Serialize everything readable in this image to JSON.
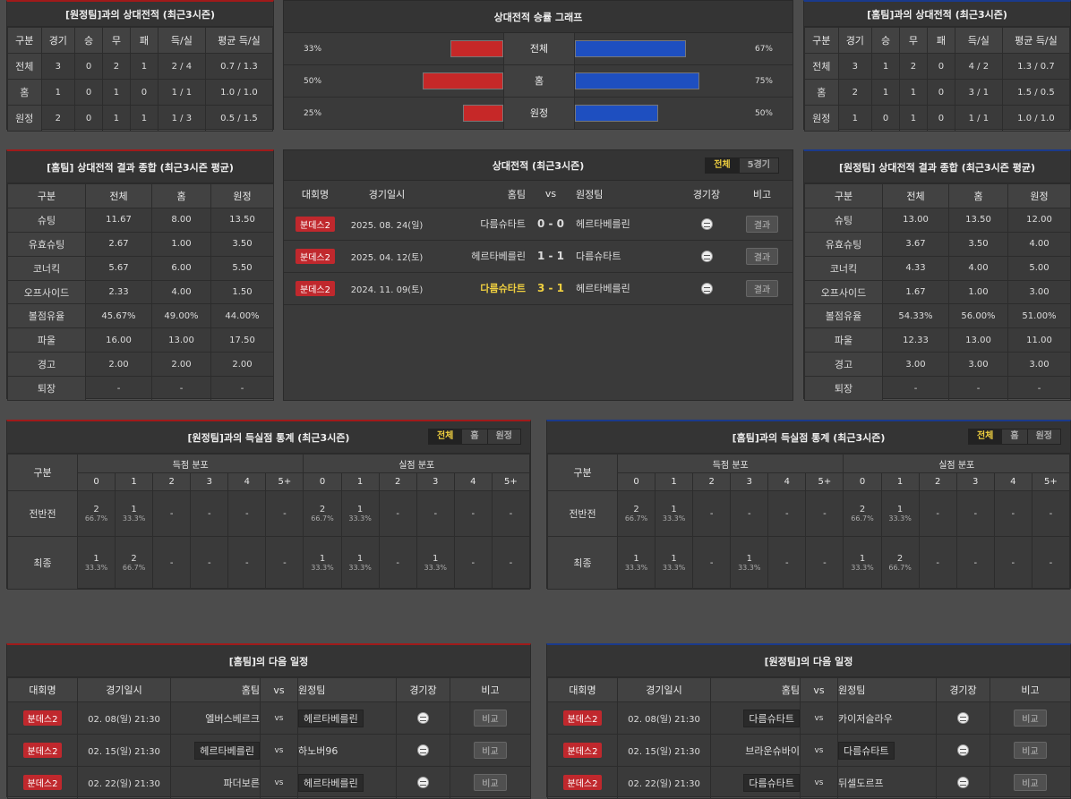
{
  "h2h_away": {
    "title": "[원정팀]과의 상대전적 (최근3시즌)",
    "headers": [
      "구분",
      "경기",
      "승",
      "무",
      "패",
      "득/실",
      "평균 득/실"
    ],
    "rows": [
      [
        "전체",
        "3",
        "0",
        "2",
        "1",
        "2 / 4",
        "0.7 / 1.3"
      ],
      [
        "홈",
        "1",
        "0",
        "1",
        "0",
        "1 / 1",
        "1.0 / 1.0"
      ],
      [
        "원정",
        "2",
        "0",
        "1",
        "1",
        "1 / 3",
        "0.5 / 1.5"
      ]
    ]
  },
  "h2h_home": {
    "title": "[홈팀]과의 상대전적 (최근3시즌)",
    "headers": [
      "구분",
      "경기",
      "승",
      "무",
      "패",
      "득/실",
      "평균 득/실"
    ],
    "rows": [
      [
        "전체",
        "3",
        "1",
        "2",
        "0",
        "4 / 2",
        "1.3 / 0.7"
      ],
      [
        "홈",
        "2",
        "1",
        "1",
        "0",
        "3 / 1",
        "1.5 / 0.5"
      ],
      [
        "원정",
        "1",
        "0",
        "1",
        "0",
        "1 / 1",
        "1.0 / 1.0"
      ]
    ]
  },
  "win_graph": {
    "title": "상대전적 승률 그래프",
    "rows": [
      {
        "label": "전체",
        "left": "33%",
        "right": "67%",
        "left_val": 33,
        "right_val": 67
      },
      {
        "label": "홈",
        "left": "50%",
        "right": "75%",
        "left_val": 50,
        "right_val": 75
      },
      {
        "label": "원정",
        "left": "25%",
        "right": "50%",
        "left_val": 25,
        "right_val": 50
      }
    ]
  },
  "home_summary": {
    "title": "[홈팀] 상대전적 결과 종합 (최근3시즌 평균)",
    "headers": [
      "구분",
      "전체",
      "홈",
      "원정"
    ],
    "rows": [
      [
        "슈팅",
        "11.67",
        "8.00",
        "13.50"
      ],
      [
        "유효슈팅",
        "2.67",
        "1.00",
        "3.50"
      ],
      [
        "코너킥",
        "5.67",
        "6.00",
        "5.50"
      ],
      [
        "오프사이드",
        "2.33",
        "4.00",
        "1.50"
      ],
      [
        "볼점유율",
        "45.67%",
        "49.00%",
        "44.00%"
      ],
      [
        "파울",
        "16.00",
        "13.00",
        "17.50"
      ],
      [
        "경고",
        "2.00",
        "2.00",
        "2.00"
      ],
      [
        "퇴장",
        "-",
        "-",
        "-"
      ]
    ]
  },
  "away_summary": {
    "title": "[원정팀] 상대전적 결과 종합 (최근3시즌 평균)",
    "headers": [
      "구분",
      "전체",
      "홈",
      "원정"
    ],
    "rows": [
      [
        "슈팅",
        "13.00",
        "13.50",
        "12.00"
      ],
      [
        "유효슈팅",
        "3.67",
        "3.50",
        "4.00"
      ],
      [
        "코너킥",
        "4.33",
        "4.00",
        "5.00"
      ],
      [
        "오프사이드",
        "1.67",
        "1.00",
        "3.00"
      ],
      [
        "볼점유율",
        "54.33%",
        "56.00%",
        "51.00%"
      ],
      [
        "파울",
        "12.33",
        "13.00",
        "11.00"
      ],
      [
        "경고",
        "3.00",
        "3.00",
        "3.00"
      ],
      [
        "퇴장",
        "-",
        "-",
        "-"
      ]
    ]
  },
  "h2h_matches": {
    "title": "상대전적 (최근3시즌)",
    "tabs": [
      "전체",
      "5경기"
    ],
    "headers": {
      "league": "대회명",
      "date": "경기일시",
      "home": "홈팀",
      "vs": "vs",
      "away": "원정팀",
      "venue": "경기장",
      "note": "비고"
    },
    "rows": [
      {
        "league": "분데스2",
        "date": "2025. 08. 24(일)",
        "home": "다름슈타트",
        "score": "0 - 0",
        "away": "헤르타베를린",
        "btn": "결과"
      },
      {
        "league": "분데스2",
        "date": "2025. 04. 12(토)",
        "home": "헤르타베를린",
        "score": "1 - 1",
        "away": "다름슈타트",
        "btn": "결과"
      },
      {
        "league": "분데스2",
        "date": "2024. 11. 09(토)",
        "home": "다름슈타트",
        "score": "3 - 1",
        "away": "헤르타베를린",
        "btn": "결과"
      }
    ]
  },
  "goals_away": {
    "title": "[원정팀]과의 득실점 통계 (최근3시즌)",
    "tabs": [
      "전체",
      "홈",
      "원정"
    ],
    "col0": "구분",
    "g1": "득점 분포",
    "g2": "실점 분포",
    "cols": [
      "0",
      "1",
      "2",
      "3",
      "4",
      "5+",
      "0",
      "1",
      "2",
      "3",
      "4",
      "5+"
    ],
    "rows": [
      {
        "label": "전반전",
        "cells": [
          [
            "2",
            "66.7%"
          ],
          [
            "1",
            "33.3%"
          ],
          [
            "-",
            ""
          ],
          [
            "-",
            ""
          ],
          [
            "-",
            ""
          ],
          [
            "-",
            ""
          ],
          [
            "2",
            "66.7%"
          ],
          [
            "1",
            "33.3%"
          ],
          [
            "-",
            ""
          ],
          [
            "-",
            ""
          ],
          [
            "-",
            ""
          ],
          [
            "-",
            ""
          ]
        ]
      },
      {
        "label": "최종",
        "cells": [
          [
            "1",
            "33.3%"
          ],
          [
            "2",
            "66.7%"
          ],
          [
            "-",
            ""
          ],
          [
            "-",
            ""
          ],
          [
            "-",
            ""
          ],
          [
            "-",
            ""
          ],
          [
            "1",
            "33.3%"
          ],
          [
            "1",
            "33.3%"
          ],
          [
            "-",
            ""
          ],
          [
            "1",
            "33.3%"
          ],
          [
            "-",
            ""
          ],
          [
            "-",
            ""
          ]
        ]
      }
    ]
  },
  "goals_home": {
    "title": "[홈팀]과의 득실점 통계 (최근3시즌)",
    "tabs": [
      "전체",
      "홈",
      "원정"
    ],
    "col0": "구분",
    "g1": "득점 분포",
    "g2": "실점 분포",
    "cols": [
      "0",
      "1",
      "2",
      "3",
      "4",
      "5+",
      "0",
      "1",
      "2",
      "3",
      "4",
      "5+"
    ],
    "rows": [
      {
        "label": "전반전",
        "cells": [
          [
            "2",
            "66.7%"
          ],
          [
            "1",
            "33.3%"
          ],
          [
            "-",
            ""
          ],
          [
            "-",
            ""
          ],
          [
            "-",
            ""
          ],
          [
            "-",
            ""
          ],
          [
            "2",
            "66.7%"
          ],
          [
            "1",
            "33.3%"
          ],
          [
            "-",
            ""
          ],
          [
            "-",
            ""
          ],
          [
            "-",
            ""
          ],
          [
            "-",
            ""
          ]
        ]
      },
      {
        "label": "최종",
        "cells": [
          [
            "1",
            "33.3%"
          ],
          [
            "1",
            "33.3%"
          ],
          [
            "-",
            ""
          ],
          [
            "1",
            "33.3%"
          ],
          [
            "-",
            ""
          ],
          [
            "-",
            ""
          ],
          [
            "1",
            "33.3%"
          ],
          [
            "2",
            "66.7%"
          ],
          [
            "-",
            ""
          ],
          [
            "-",
            ""
          ],
          [
            "-",
            ""
          ],
          [
            "-",
            ""
          ]
        ]
      }
    ]
  },
  "next_home": {
    "title": "[홈팀]의 다음 일정",
    "headers": {
      "league": "대회명",
      "date": "경기일시",
      "home": "홈팀",
      "vs": "vs",
      "away": "원정팀",
      "venue": "경기장",
      "note": "비고"
    },
    "rows": [
      {
        "league": "분데스2",
        "date": "02. 08(일) 21:30",
        "home": "엘버스베르크",
        "away": "헤르타베를린",
        "btn": "비교",
        "hl": "away"
      },
      {
        "league": "분데스2",
        "date": "02. 15(일) 21:30",
        "home": "헤르타베를린",
        "away": "하노버96",
        "btn": "비교",
        "hl": "home"
      },
      {
        "league": "분데스2",
        "date": "02. 22(일) 21:30",
        "home": "파더보른",
        "away": "헤르타베를린",
        "btn": "비교",
        "hl": "away"
      }
    ]
  },
  "next_away": {
    "title": "[원정팀]의 다음 일정",
    "headers": {
      "league": "대회명",
      "date": "경기일시",
      "home": "홈팀",
      "vs": "vs",
      "away": "원정팀",
      "venue": "경기장",
      "note": "비고"
    },
    "rows": [
      {
        "league": "분데스2",
        "date": "02. 08(일) 21:30",
        "home": "다름슈타트",
        "away": "카이저슬라우",
        "btn": "비교",
        "hl": "home"
      },
      {
        "league": "분데스2",
        "date": "02. 15(일) 21:30",
        "home": "브라운슈바이",
        "away": "다름슈타트",
        "btn": "비교",
        "hl": "away"
      },
      {
        "league": "분데스2",
        "date": "02. 22(일) 21:30",
        "home": "다름슈타트",
        "away": "뒤셀도르프",
        "btn": "비교",
        "hl": "home"
      }
    ]
  },
  "colors": {
    "red_bar": "#c62828",
    "blue_bar": "#1e4fc0",
    "badge": "#c0282d",
    "highlight": "#f0d040"
  }
}
